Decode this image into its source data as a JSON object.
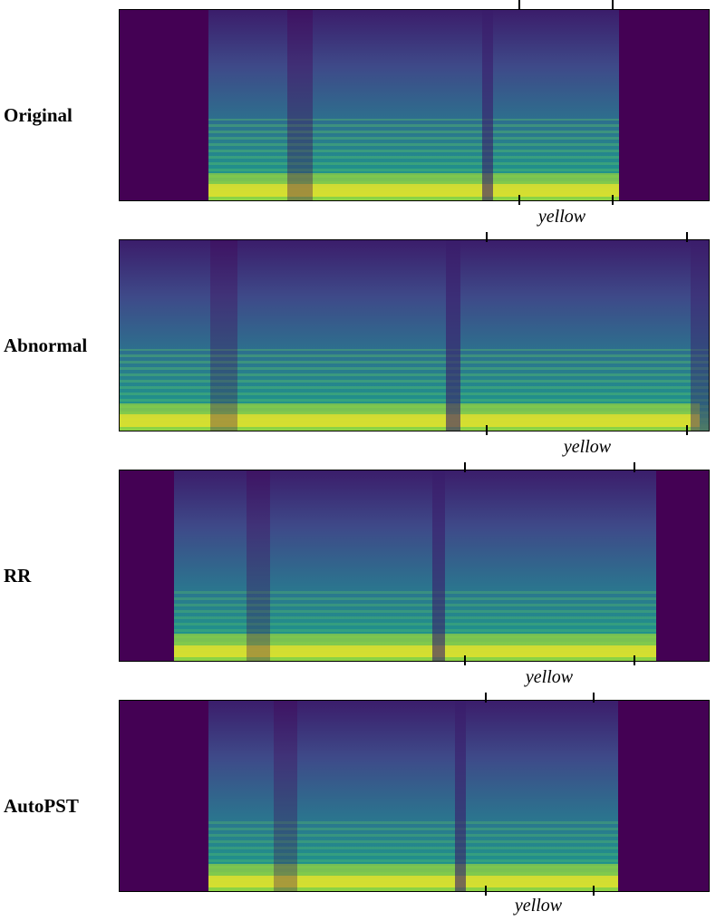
{
  "figure": {
    "rows": [
      {
        "label": "Original",
        "word": "yellow"
      },
      {
        "label": "Abnormal",
        "word": "yellow"
      },
      {
        "label": "RR",
        "word": "yellow"
      },
      {
        "label": "AutoPST",
        "word": "yellow"
      }
    ]
  },
  "colors": {
    "background": "#440154",
    "dark": "#3b1d6b",
    "mid": "#2c728e",
    "teal": "#21918c",
    "green": "#5ec962",
    "yellow": "#fde725"
  }
}
